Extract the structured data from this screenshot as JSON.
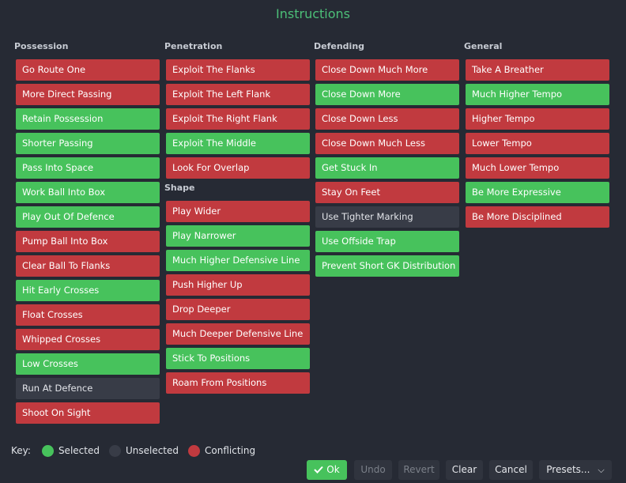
{
  "title": "Instructions",
  "columns": [
    {
      "heading": "Possession",
      "items": [
        {
          "label": "Go Route One",
          "state": "red"
        },
        {
          "label": "More Direct Passing",
          "state": "red"
        },
        {
          "label": "Retain Possession",
          "state": "green"
        },
        {
          "label": "Shorter Passing",
          "state": "green"
        },
        {
          "label": "Pass Into Space",
          "state": "green"
        },
        {
          "label": "Work Ball Into Box",
          "state": "green"
        },
        {
          "label": "Play Out Of Defence",
          "state": "green"
        },
        {
          "label": "Pump Ball Into Box",
          "state": "red"
        },
        {
          "label": "Clear Ball To Flanks",
          "state": "red"
        },
        {
          "label": "Hit Early Crosses",
          "state": "green"
        },
        {
          "label": "Float Crosses",
          "state": "red"
        },
        {
          "label": "Whipped Crosses",
          "state": "red"
        },
        {
          "label": "Low Crosses",
          "state": "green"
        },
        {
          "label": "Run At Defence",
          "state": "grey"
        },
        {
          "label": "Shoot On Sight",
          "state": "red"
        }
      ]
    },
    {
      "heading": "Penetration",
      "items": [
        {
          "label": "Exploit The Flanks",
          "state": "red"
        },
        {
          "label": "Exploit The Left Flank",
          "state": "red"
        },
        {
          "label": "Exploit The Right Flank",
          "state": "red"
        },
        {
          "label": "Exploit The Middle",
          "state": "green"
        },
        {
          "label": "Look For Overlap",
          "state": "red"
        }
      ],
      "subheading": "Shape",
      "subitems": [
        {
          "label": "Play Wider",
          "state": "red"
        },
        {
          "label": "Play Narrower",
          "state": "green"
        },
        {
          "label": "Much Higher Defensive Line",
          "state": "green"
        },
        {
          "label": "Push Higher Up",
          "state": "red"
        },
        {
          "label": "Drop Deeper",
          "state": "red"
        },
        {
          "label": "Much Deeper Defensive Line",
          "state": "red"
        },
        {
          "label": "Stick To Positions",
          "state": "green"
        },
        {
          "label": "Roam From Positions",
          "state": "red"
        }
      ]
    },
    {
      "heading": "Defending",
      "items": [
        {
          "label": "Close Down Much More",
          "state": "red"
        },
        {
          "label": "Close Down More",
          "state": "green"
        },
        {
          "label": "Close Down Less",
          "state": "red"
        },
        {
          "label": "Close Down Much Less",
          "state": "red"
        },
        {
          "label": "Get Stuck In",
          "state": "green"
        },
        {
          "label": "Stay On Feet",
          "state": "red"
        },
        {
          "label": "Use Tighter Marking",
          "state": "grey"
        },
        {
          "label": "Use Offside Trap",
          "state": "green"
        },
        {
          "label": "Prevent Short GK Distribution",
          "state": "green"
        }
      ]
    },
    {
      "heading": "General",
      "items": [
        {
          "label": "Take A Breather",
          "state": "red"
        },
        {
          "label": "Much Higher Tempo",
          "state": "green"
        },
        {
          "label": "Higher Tempo",
          "state": "red"
        },
        {
          "label": "Lower Tempo",
          "state": "red"
        },
        {
          "label": "Much Lower Tempo",
          "state": "red"
        },
        {
          "label": "Be More Expressive",
          "state": "green"
        },
        {
          "label": "Be More Disciplined",
          "state": "red"
        }
      ]
    }
  ],
  "key": {
    "label": "Key:",
    "selected": "Selected",
    "unselected": "Unselected",
    "conflicting": "Conflicting"
  },
  "colors": {
    "selected": "#47c25c",
    "unselected": "#383c47",
    "conflicting": "#c13a3f",
    "title": "#4cbf78"
  },
  "footer": {
    "ok": "Ok",
    "undo": "Undo",
    "revert": "Revert",
    "clear": "Clear",
    "cancel": "Cancel",
    "presets": "Presets..."
  }
}
